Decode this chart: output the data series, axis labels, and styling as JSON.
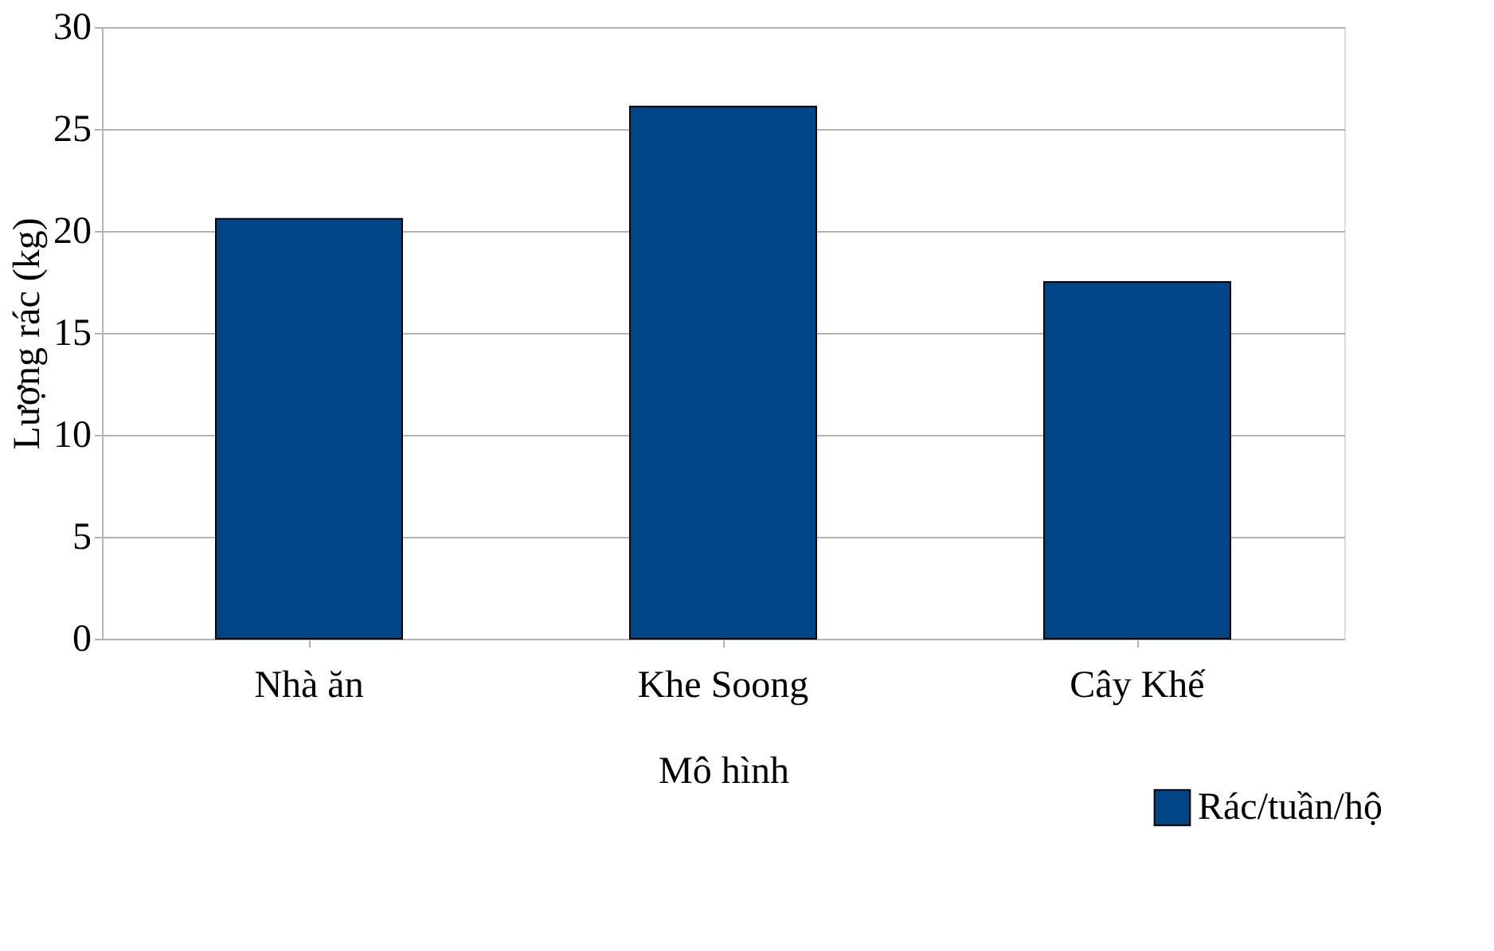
{
  "chart_data": {
    "type": "bar",
    "categories": [
      "Nhà ăn",
      "Khe Soong",
      "Cây Khế"
    ],
    "series": [
      {
        "name": "Rác/tuần/hộ",
        "color": "#004586",
        "values": [
          20.6,
          26.1,
          17.5
        ]
      }
    ],
    "xlabel": "Mô hình",
    "ylabel": "Lượng rác (kg)",
    "ylim": [
      0,
      30
    ],
    "yticks": [
      0,
      5,
      10,
      15,
      20,
      25,
      30
    ],
    "grid": "y",
    "legend": "bottom right"
  }
}
